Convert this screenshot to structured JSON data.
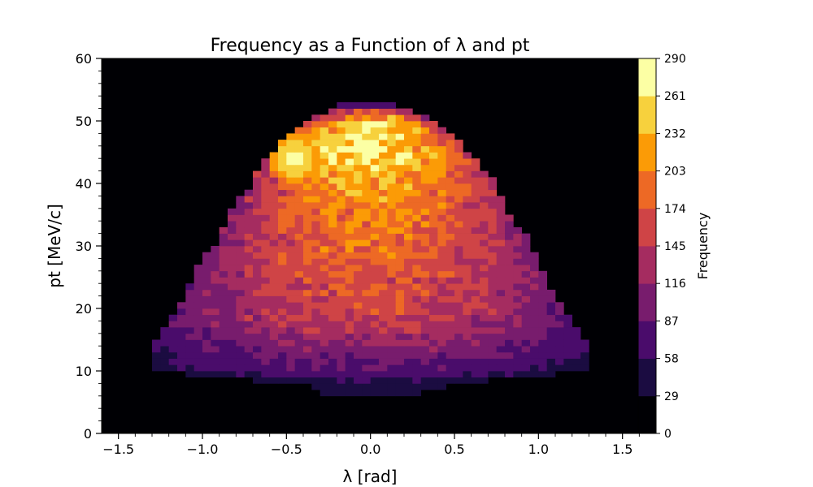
{
  "chart_data": {
    "type": "heatmap",
    "title": "Frequency as a Function of λ and pt",
    "xlabel": "λ [rad]",
    "ylabel": "pt [MeV/c]",
    "xlim": [
      -1.6,
      1.7
    ],
    "ylim": [
      0,
      60
    ],
    "xticks": [
      -1.5,
      -1.0,
      -0.5,
      0.0,
      0.5,
      1.0,
      1.5
    ],
    "xtick_labels": [
      "−1.5",
      "−1.0",
      "−0.5",
      "0.0",
      "0.5",
      "1.0",
      "1.5"
    ],
    "yticks": [
      0,
      10,
      20,
      30,
      40,
      50,
      60
    ],
    "ytick_labels": [
      "0",
      "10",
      "20",
      "30",
      "40",
      "50",
      "60"
    ],
    "bin_width_x": 0.05,
    "bin_width_y": 1.0,
    "grid": false,
    "colormap": "inferno",
    "background_color": "#000004",
    "profile_rows": [
      {
        "pt": 6,
        "lambda_min": -0.3,
        "lambda_max": 0.3,
        "peak": 42
      },
      {
        "pt": 8,
        "lambda_min": -0.5,
        "lambda_max": 0.5,
        "peak": 50
      },
      {
        "pt": 10,
        "lambda_min": -1.3,
        "lambda_max": 1.3,
        "peak": 80
      },
      {
        "pt": 12,
        "lambda_min": -1.3,
        "lambda_max": 1.3,
        "peak": 95
      },
      {
        "pt": 14,
        "lambda_min": -1.3,
        "lambda_max": 1.3,
        "peak": 112
      },
      {
        "pt": 16,
        "lambda_min": -1.25,
        "lambda_max": 1.25,
        "peak": 130
      },
      {
        "pt": 18,
        "lambda_min": -1.2,
        "lambda_max": 1.2,
        "peak": 150
      },
      {
        "pt": 20,
        "lambda_min": -1.15,
        "lambda_max": 1.15,
        "peak": 158
      },
      {
        "pt": 22,
        "lambda_min": -1.1,
        "lambda_max": 1.1,
        "peak": 165
      },
      {
        "pt": 25,
        "lambda_min": -1.05,
        "lambda_max": 1.05,
        "peak": 172
      },
      {
        "pt": 28,
        "lambda_min": -1.0,
        "lambda_max": 1.0,
        "peak": 182
      },
      {
        "pt": 31,
        "lambda_min": -0.9,
        "lambda_max": 0.95,
        "peak": 192
      },
      {
        "pt": 34,
        "lambda_min": -0.85,
        "lambda_max": 0.85,
        "peak": 200
      },
      {
        "pt": 37,
        "lambda_min": -0.8,
        "lambda_max": 0.8,
        "peak": 210
      },
      {
        "pt": 40,
        "lambda_min": -0.7,
        "lambda_max": 0.75,
        "peak": 225
      },
      {
        "pt": 43,
        "lambda_min": -0.65,
        "lambda_max": 0.65,
        "peak": 245
      },
      {
        "pt": 46,
        "lambda_min": -0.55,
        "lambda_max": 0.55,
        "peak": 265
      },
      {
        "pt": 49,
        "lambda_min": -0.45,
        "lambda_max": 0.45,
        "peak": 250
      },
      {
        "pt": 51,
        "lambda_min": -0.3,
        "lambda_max": 0.3,
        "peak": 215
      },
      {
        "pt": 53,
        "lambda_min": -0.15,
        "lambda_max": 0.1,
        "peak": 60
      }
    ],
    "peak_region": {
      "lambda": -0.45,
      "pt": 44,
      "value": 285
    },
    "colorbar": {
      "label": "Frequency",
      "boundaries": [
        0,
        29,
        58,
        87,
        116,
        145,
        174,
        203,
        232,
        261,
        290
      ],
      "tick_labels": [
        "0",
        "29",
        "58",
        "87",
        "116",
        "145",
        "174",
        "203",
        "232",
        "261",
        "290"
      ],
      "colors": [
        "#000004",
        "#1b0c41",
        "#4a0c6b",
        "#781c6d",
        "#a52c60",
        "#cf4446",
        "#ed6925",
        "#fb9b06",
        "#f7d13d",
        "#fcffa4"
      ]
    }
  }
}
